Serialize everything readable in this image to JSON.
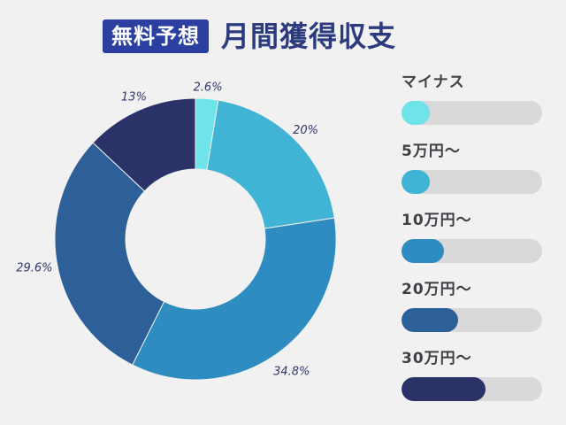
{
  "header": {
    "badge": "無料予想",
    "title": "月間獲得収支"
  },
  "chart_data": {
    "type": "pie",
    "series_labels": [
      "マイナス",
      "5万円〜",
      "10万円〜",
      "20万円〜",
      "30万円〜"
    ],
    "values": [
      2.6,
      20,
      34.8,
      29.6,
      13
    ],
    "value_labels": [
      "2.6%",
      "20%",
      "34.8%",
      "29.6%",
      "13%"
    ],
    "colors": [
      "#6ee3ea",
      "#41b4d6",
      "#2e8cc0",
      "#2d5f98",
      "#2b3268"
    ]
  },
  "legend": [
    {
      "label": "マイナス",
      "color": "#6ee3ea",
      "level": 0.2
    },
    {
      "label": "5万円〜",
      "color": "#41b4d6",
      "level": 0.2
    },
    {
      "label": "10万円〜",
      "color": "#2e8cc0",
      "level": 0.3
    },
    {
      "label": "20万円〜",
      "color": "#2d5f98",
      "level": 0.4
    },
    {
      "label": "30万円〜",
      "color": "#2b3268",
      "level": 0.6
    }
  ]
}
